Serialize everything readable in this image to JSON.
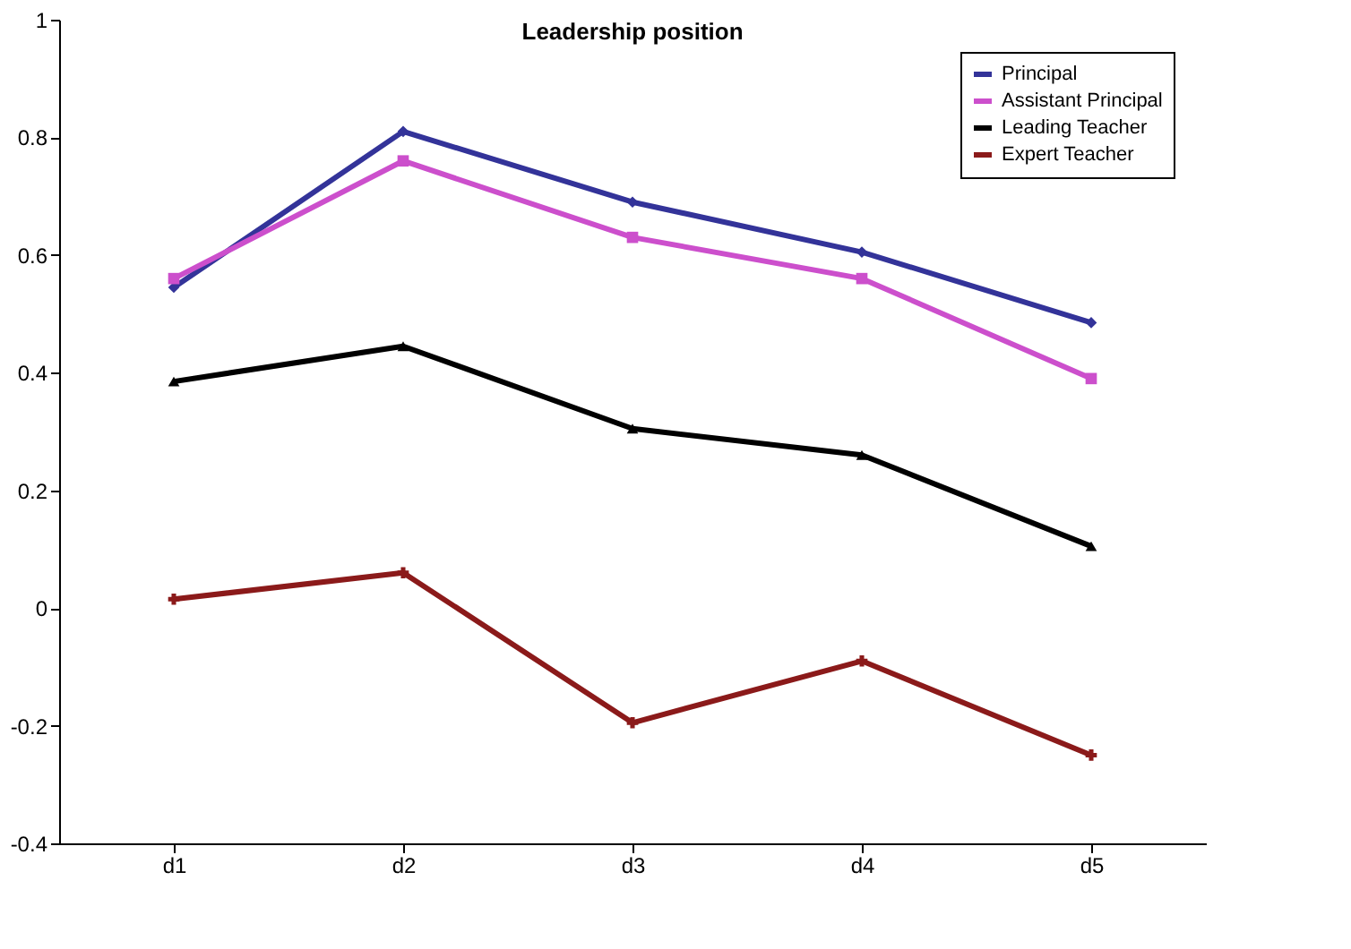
{
  "chart_data": {
    "type": "line",
    "title": "Leadership position",
    "categories": [
      "d1",
      "d2",
      "d3",
      "d4",
      "d5"
    ],
    "ylim": [
      -0.4,
      1
    ],
    "yticks": [
      -0.4,
      -0.2,
      0,
      0.2,
      0.4,
      0.6,
      0.8,
      1
    ],
    "grid": false,
    "legend": "top right",
    "line_style": "solid",
    "series": [
      {
        "name": "Principal",
        "color": "#333399",
        "marker": "diamond",
        "values": [
          0.545,
          0.81,
          0.69,
          0.605,
          0.485
        ]
      },
      {
        "name": "Assistant Principal",
        "color": "#cc4fcc",
        "marker": "square",
        "values": [
          0.56,
          0.76,
          0.63,
          0.56,
          0.39
        ]
      },
      {
        "name": "Leading Teacher",
        "color": "#000000",
        "marker": "triangle",
        "values": [
          0.385,
          0.445,
          0.305,
          0.26,
          0.105
        ]
      },
      {
        "name": "Expert Teacher",
        "color": "#8b1a1a",
        "marker": "cross",
        "values": [
          0.015,
          0.06,
          -0.195,
          -0.09,
          -0.25
        ]
      }
    ]
  }
}
